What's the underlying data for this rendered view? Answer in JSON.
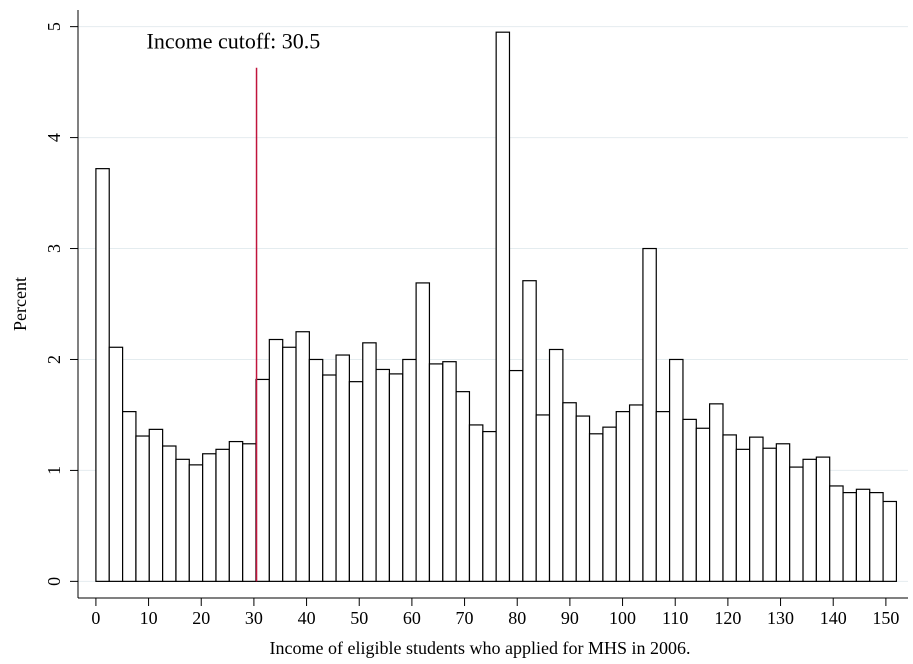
{
  "chart_data": {
    "type": "histogram",
    "x_label": "Income of eligible students who applied for MHS in 2006.",
    "y_label": "Percent",
    "bins": [
      0,
      2.53,
      5.07,
      7.6,
      10.13,
      12.67,
      15.2,
      17.73,
      20.27,
      22.8,
      25.33,
      27.87,
      30.4,
      32.93,
      35.47,
      38,
      40.53,
      43.07,
      45.6,
      48.13,
      50.67,
      53.2,
      55.73,
      58.27,
      60.8,
      63.33,
      65.87,
      68.4,
      70.93,
      73.47,
      76,
      78.53,
      81.07,
      83.6,
      86.13,
      88.67,
      91.2,
      93.73,
      96.27,
      98.8,
      101.33,
      103.87,
      106.4,
      108.93,
      111.47,
      114,
      116.53,
      119.07,
      121.6,
      124.13,
      126.67,
      129.2,
      131.73,
      134.27,
      136.8,
      139.33,
      141.87,
      144.4,
      146.93,
      149.47,
      152
    ],
    "values": [
      3.72,
      2.11,
      1.53,
      1.31,
      1.37,
      1.22,
      1.1,
      1.05,
      1.15,
      1.19,
      1.26,
      1.24,
      1.82,
      2.18,
      2.11,
      2.25,
      2.0,
      1.86,
      2.04,
      1.8,
      2.15,
      1.91,
      1.87,
      2.0,
      2.69,
      1.96,
      1.98,
      1.71,
      1.41,
      1.35,
      4.95,
      1.9,
      2.71,
      1.5,
      2.09,
      1.61,
      1.49,
      1.33,
      1.39,
      1.53,
      1.59,
      3.0,
      1.53,
      2.0,
      1.46,
      1.38,
      1.6,
      1.32,
      1.19,
      1.3,
      1.2,
      1.24,
      1.03,
      1.1,
      1.12,
      0.86,
      0.8,
      0.83,
      0.8,
      0.72
    ],
    "color": "#ffffff",
    "edge_color": "#000000",
    "xlim": [
      -3.4,
      154.2
    ],
    "ylim": [
      -0.15,
      5.15
    ],
    "xticks": [
      0,
      10,
      20,
      30,
      40,
      50,
      60,
      70,
      80,
      90,
      100,
      110,
      120,
      130,
      140,
      150
    ],
    "yticks": [
      0,
      1,
      2,
      3,
      4,
      5
    ],
    "grid": true,
    "reference_line": {
      "x": 30.5,
      "y_top": 4.63,
      "color": "#c0143c",
      "label": "Income cutoff: 30.5"
    }
  }
}
